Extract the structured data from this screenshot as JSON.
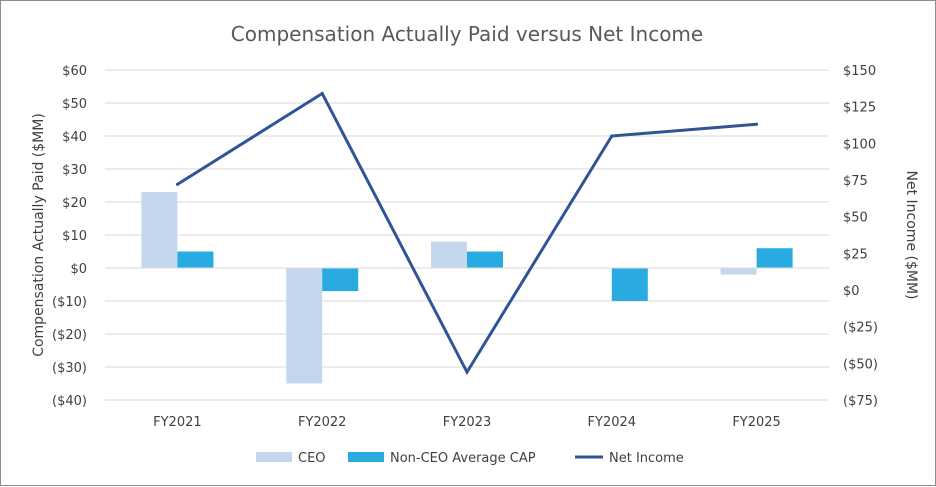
{
  "chart_data": {
    "type": "bar",
    "title": "Compensation Actually Paid versus Net Income",
    "categories": [
      "FY2021",
      "FY2022",
      "FY2023",
      "FY2024",
      "FY2025"
    ],
    "ylabel_left": "Compensation Actually Paid ($MM)",
    "ylabel_right": "Net Income ($MM)",
    "ylim_left": [
      -40,
      60
    ],
    "ylim_right": [
      -75,
      150
    ],
    "yticks_left": [
      "$60",
      "$50",
      "$40",
      "$30",
      "$20",
      "$10",
      "$0",
      "($10)",
      "($20)",
      "($30)",
      "($40)"
    ],
    "yticks_right": [
      "$150",
      "$125",
      "$100",
      "$75",
      "$50",
      "$25",
      "$0",
      "($25)",
      "($50)",
      "($75)"
    ],
    "grid": true,
    "legend_position": "bottom",
    "series": [
      {
        "name": "CEO",
        "kind": "bar",
        "axis": "left",
        "color": "#c5d7ee",
        "values": [
          23,
          -35,
          8,
          0,
          -2
        ]
      },
      {
        "name": "Non-CEO Average CAP",
        "kind": "bar",
        "axis": "left",
        "color": "#29abe2",
        "values": [
          5,
          -7,
          5,
          -10,
          6
        ]
      },
      {
        "name": "Net Income",
        "kind": "line",
        "axis": "right",
        "color": "#2f5597",
        "values": [
          72,
          134,
          -56,
          105,
          113
        ]
      }
    ]
  }
}
